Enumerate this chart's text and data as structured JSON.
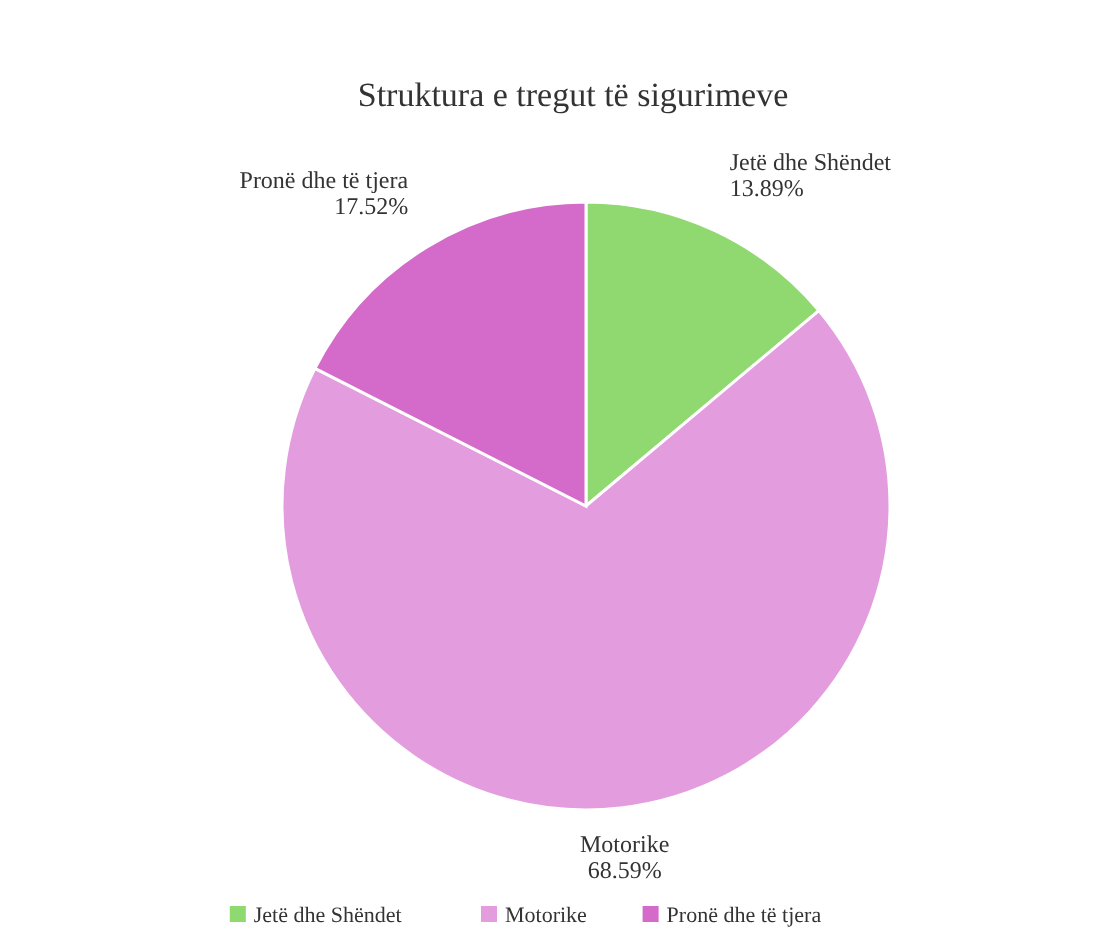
{
  "chart_data": {
    "type": "pie",
    "title": "Struktura e tregut të sigurimeve",
    "categories": [
      "Jetë dhe Shëndet",
      "Motorike",
      "Pronë dhe të tjera"
    ],
    "values": [
      13.89,
      68.59,
      17.52
    ],
    "colors": [
      "#90d870",
      "#e39ddf",
      "#d46ac9"
    ],
    "value_labels": [
      "13.89%",
      "68.59%",
      "17.52%"
    ],
    "legend": "bottom"
  }
}
